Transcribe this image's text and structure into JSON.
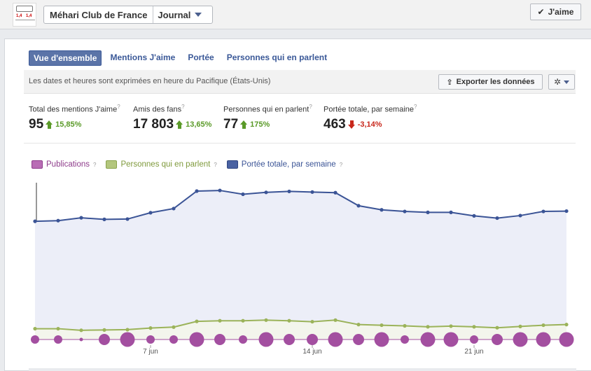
{
  "header": {
    "page_name": "Méhari Club de France",
    "page_menu": "Journal",
    "like_button": "J'aime",
    "logo_text_left": "1,4",
    "logo_text_right": "1,4"
  },
  "tabs": [
    {
      "label": "Vue d'ensemble",
      "active": true
    },
    {
      "label": "Mentions J'aime",
      "active": false
    },
    {
      "label": "Portée",
      "active": false
    },
    {
      "label": "Personnes qui en parlent",
      "active": false
    }
  ],
  "infobar": {
    "text": "Les dates et heures sont exprimées en heure du Pacifique (États-Unis)",
    "export_label": "Exporter les données"
  },
  "stats": [
    {
      "label": "Total des mentions J'aime",
      "value": "95",
      "delta": "15,85%",
      "direction": "up"
    },
    {
      "label": "Amis des fans",
      "value": "17 803",
      "delta": "13,65%",
      "direction": "up"
    },
    {
      "label": "Personnes qui en parlent",
      "value": "77",
      "delta": "175%",
      "direction": "up"
    },
    {
      "label": "Portée totale, par semaine",
      "value": "463",
      "delta": "-3,14%",
      "direction": "down"
    }
  ],
  "help_mark": "?",
  "legend": [
    {
      "label": "Publications",
      "color": "#a34fa0"
    },
    {
      "label": "Personnes qui en parlent",
      "color": "#9bb35a"
    },
    {
      "label": "Portée totale, par semaine",
      "color": "#3b5496"
    }
  ],
  "chart_data": {
    "type": "line",
    "x_ticks": [
      {
        "index": 5,
        "label": "7 jun"
      },
      {
        "index": 12,
        "label": "14 jun"
      },
      {
        "index": 19,
        "label": "21 jun"
      }
    ],
    "series": [
      {
        "name": "Portée totale, par semaine",
        "color": "#3b5496",
        "values": [
          372,
          374,
          383,
          378,
          379,
          399,
          412,
          467,
          469,
          457,
          463,
          466,
          464,
          462,
          421,
          408,
          403,
          400,
          400,
          389,
          382,
          390,
          403,
          404
        ]
      },
      {
        "name": "Personnes qui en parlent",
        "color": "#9bb35a",
        "values": [
          34,
          34,
          29,
          30,
          31,
          36,
          39,
          57,
          59,
          59,
          61,
          59,
          56,
          61,
          47,
          45,
          43,
          40,
          42,
          40,
          37,
          41,
          45,
          47
        ]
      },
      {
        "name": "Publications",
        "color": "#a34fa0",
        "values": [
          1,
          1,
          0,
          2,
          3,
          1,
          1,
          3,
          2,
          1,
          3,
          2,
          2,
          3,
          2,
          3,
          1,
          3,
          3,
          1,
          2,
          3,
          3,
          3
        ]
      }
    ]
  }
}
